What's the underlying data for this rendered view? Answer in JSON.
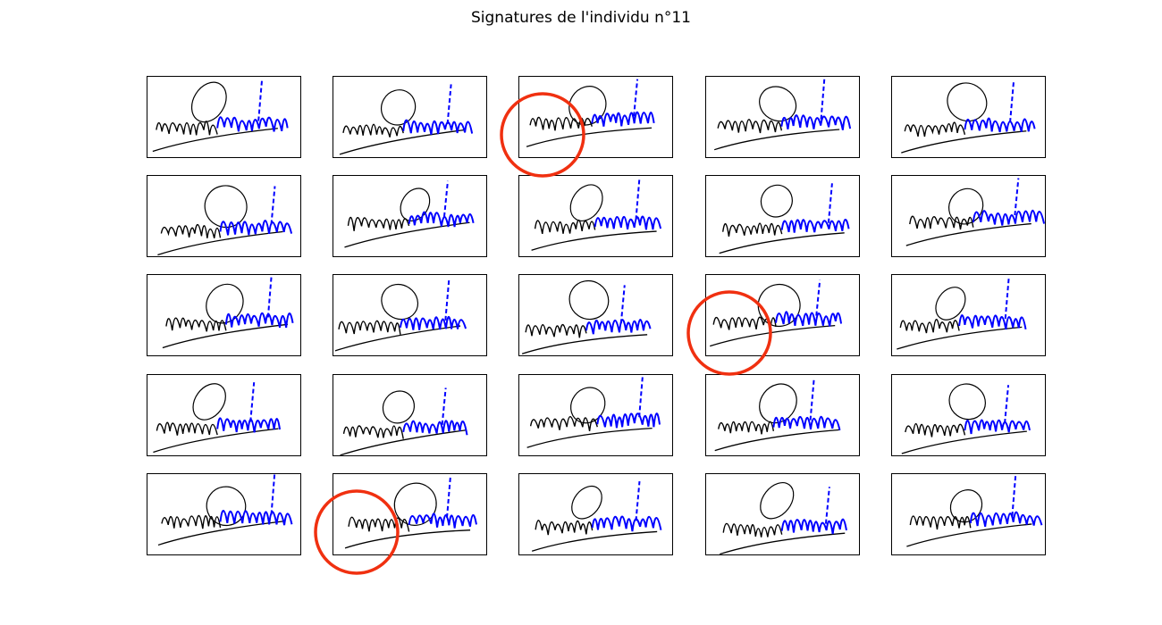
{
  "chart_data": {
    "type": "signature-grid",
    "title": "Signatures de l'individu n°11",
    "rows": 5,
    "columns": 5,
    "signature_text": "David de la Torre",
    "stroke_colors": {
      "pen_down": "#000000",
      "pen_up": "#0000ff"
    },
    "highlight_color": "#f03010",
    "highlighted_panels": [
      {
        "row": 0,
        "col": 2
      },
      {
        "row": 2,
        "col": 3
      },
      {
        "row": 4,
        "col": 1
      }
    ]
  }
}
